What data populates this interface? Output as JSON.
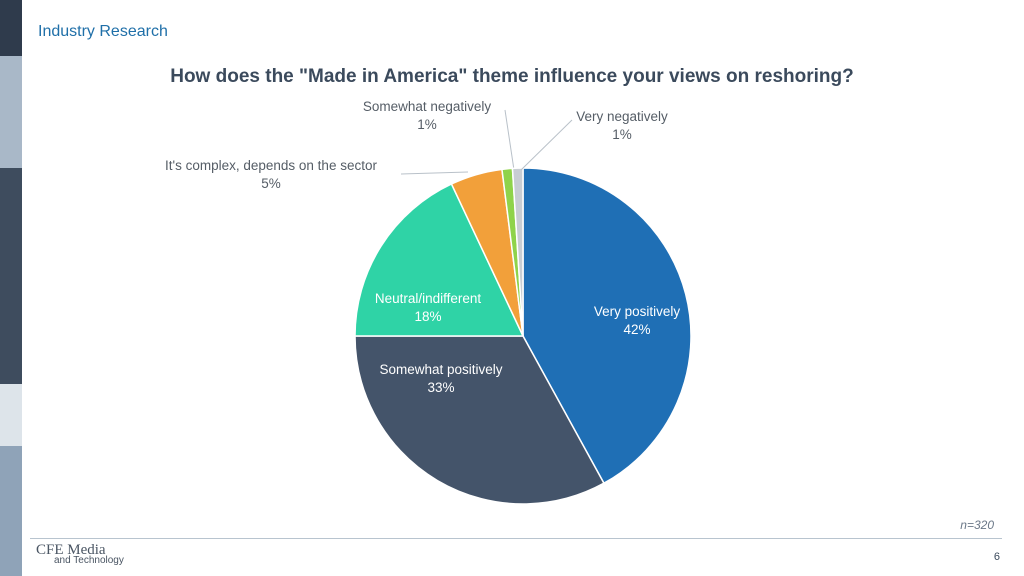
{
  "header": {
    "section_label": "Industry Research"
  },
  "sidebar": {
    "colors": [
      "#2f3b4c",
      "#a9b8c8",
      "#3e4c5e",
      "#dde4ea",
      "#8fa3b8"
    ]
  },
  "chart_data": {
    "type": "pie",
    "title": "How does the \"Made in America\" theme influence your views on reshoring?",
    "slices": [
      {
        "label": "Very positively",
        "value": 42,
        "value_label": "42%",
        "color": "#1f6fb5"
      },
      {
        "label": "Somewhat positively",
        "value": 33,
        "value_label": "33%",
        "color": "#44546a"
      },
      {
        "label": "Neutral/indifferent",
        "value": 18,
        "value_label": "18%",
        "color": "#2fd3a6"
      },
      {
        "label": "It's complex, depends on the sector",
        "value": 5,
        "value_label": "5%",
        "color": "#f2a03a"
      },
      {
        "label": "Somewhat negatively",
        "value": 1,
        "value_label": "1%",
        "color": "#8fd34a"
      },
      {
        "label": "Very negatively",
        "value": 1,
        "value_label": "1%",
        "color": "#c8cdd3"
      }
    ]
  },
  "footer": {
    "sample_size": "n=320",
    "logo_main": "CFE Media",
    "logo_sub": "and Technology",
    "page_number": "6"
  }
}
